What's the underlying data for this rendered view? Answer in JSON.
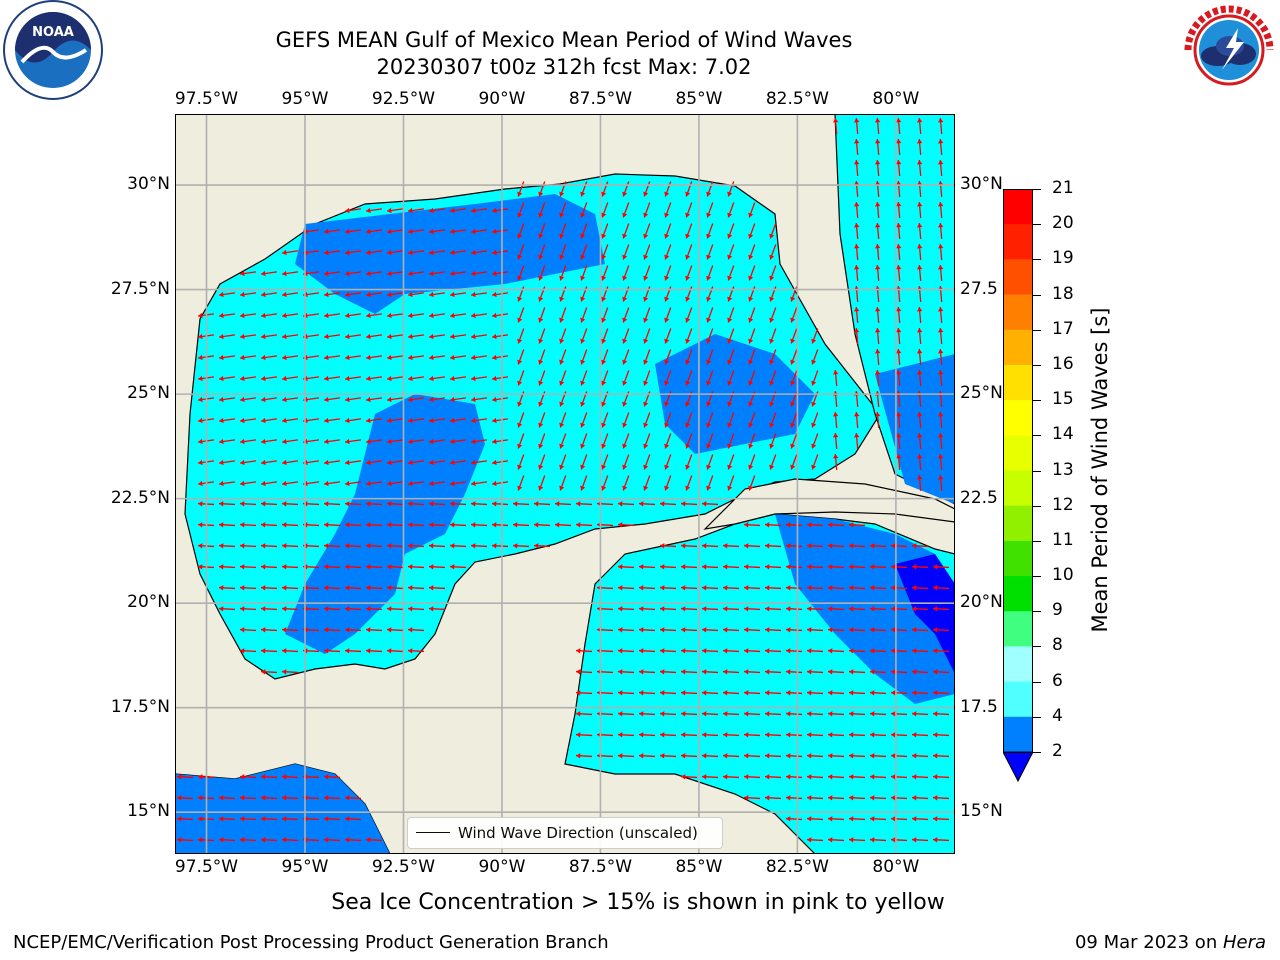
{
  "title": {
    "line1": "GEFS MEAN Gulf of Mexico Mean Period of Wind Waves",
    "line2": "20230307 t00z 312h fcst   Max: 7.02"
  },
  "logos": {
    "left": "NOAA",
    "left_ring": "NATIONAL OCEANIC AND ATMOSPHERIC ADMINISTRATION · U.S. DEPARTMENT OF COMMERCE",
    "right": "NATIONAL WEATHER SERVICE"
  },
  "map": {
    "lon_range": [
      -98.3,
      -78.5
    ],
    "lat_range": [
      14.0,
      31.7
    ],
    "lon_ticks": [
      "97.5°W",
      "95°W",
      "92.5°W",
      "90°W",
      "87.5°W",
      "85°W",
      "82.5°W",
      "80°W"
    ],
    "lat_ticks_left": [
      "30°N",
      "27.5°N",
      "25°N",
      "22.5°N",
      "20°N",
      "17.5°N",
      "15°N"
    ],
    "lat_ticks_right": [
      "30°N",
      "27.5",
      "25°N",
      "22.5",
      "20°N",
      "17.5",
      "15°N"
    ],
    "legend": "Wind Wave Direction (unscaled)",
    "colors": {
      "land": "#efedde",
      "sea_2_4": "#0080ff",
      "sea_4_6": "#00ffff",
      "sea_lt2": "#0000ff",
      "arrow": "#ff0000",
      "grid": "#b0b0b0"
    }
  },
  "colorbar": {
    "label": "Mean Period of Wind Waves [s]",
    "ticks": [
      "21",
      "20",
      "19",
      "18",
      "17",
      "16",
      "15",
      "14",
      "13",
      "12",
      "11",
      "10",
      "9",
      "8",
      "6",
      "4",
      "2"
    ],
    "colors": [
      "#ff0000",
      "#ff2000",
      "#ff5000",
      "#ff8000",
      "#ffb000",
      "#ffe000",
      "#ffff00",
      "#e8ff00",
      "#c8ff00",
      "#90f000",
      "#40e000",
      "#00e000",
      "#40ff80",
      "#a0ffff",
      "#50ffff",
      "#00ffff",
      "#0080ff"
    ],
    "under_color": "#0000ff"
  },
  "note": "Sea Ice Concentration > 15% is shown in pink to yellow",
  "footer": {
    "left": "NCEP/EMC/Verification Post Processing Product Generation Branch",
    "right_date": "09 Mar 2023 on ",
    "right_host": "Hera"
  }
}
